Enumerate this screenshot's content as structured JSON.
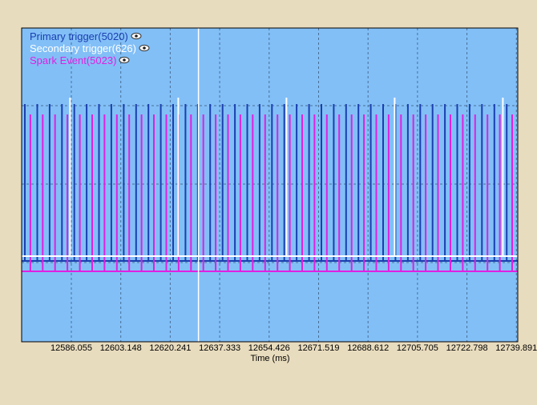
{
  "chart_data": {
    "type": "line",
    "xlabel": "Time (ms)",
    "x_ticks": [
      "12586.055",
      "12603.148",
      "12620.241",
      "12637.333",
      "12654.426",
      "12671.519",
      "12688.612",
      "12705.705",
      "12722.798",
      "12739.891"
    ],
    "series": [
      {
        "name": "Primary trigger(5020)",
        "color": "#1a3fb0",
        "pulse_period_ms": 4.27,
        "first_pulse_ms": 12570.0
      },
      {
        "name": "Secondary trigger(626)",
        "color": "#ffffff",
        "pulse_period_ms": 37.4,
        "first_pulse_ms": 12585.6
      },
      {
        "name": "Spark Event(5023)",
        "color": "#e020e0",
        "pulse_period_ms": 4.27,
        "first_pulse_ms": 12571.9
      }
    ],
    "cursor_ms": 12630.0
  },
  "legend": {
    "items": [
      {
        "label": "Primary trigger(5020)",
        "color": "#1a3fb0",
        "icon": "eye-icon"
      },
      {
        "label": "Secondary trigger(626)",
        "color": "#ffffff",
        "icon": "eye-icon"
      },
      {
        "label": "Spark Event(5023)",
        "color": "#e020e0",
        "icon": "eye-icon"
      }
    ]
  },
  "colors": {
    "plot_background": "#82bff7",
    "frame": "#000000",
    "gridline": "#4a6f96",
    "page_background": "#e8dcbe"
  }
}
